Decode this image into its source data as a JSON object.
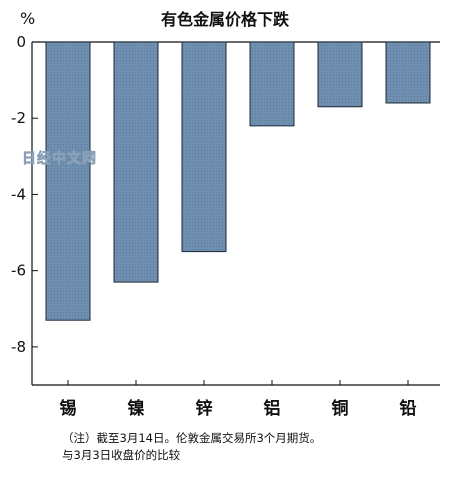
{
  "chart_data": {
    "type": "bar",
    "title": "有色金属价格下跌",
    "unit_label": "%",
    "categories": [
      "锡",
      "镍",
      "锌",
      "铝",
      "铜",
      "铅"
    ],
    "values": [
      -7.3,
      -6.3,
      -5.5,
      -2.2,
      -1.7,
      -1.6
    ],
    "ylim": [
      -9,
      0
    ],
    "yticks": [
      0,
      -2,
      -4,
      -6,
      -8
    ],
    "ytick_labels": [
      "0",
      "-2",
      "-4",
      "-6",
      "-8"
    ],
    "grid": false,
    "bar_color": "#6f8fb0",
    "watermark": "日经中文网"
  },
  "note": {
    "line1": "（注）截至3月14日。伦敦金属交易所3个月期货。",
    "line2": "与3月3日收盘价的比较"
  }
}
